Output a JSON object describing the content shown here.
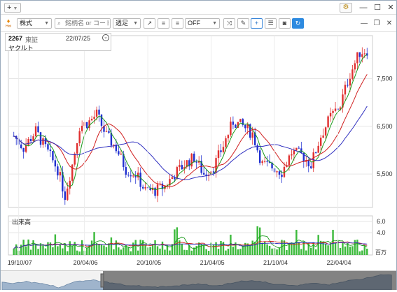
{
  "titlebar": {
    "add_label": "+",
    "window_controls": [
      "minimize",
      "maximize",
      "close"
    ]
  },
  "toolbar": {
    "brand_label": "Hot",
    "market_select": "株式",
    "search_placeholder": "銘柄名 or コード",
    "period_select": "週足",
    "indicator_select": "OFF",
    "tools": [
      "arrow-diagonal-icon",
      "align-lines-icon",
      "align-lines-2-icon",
      "swap-icon",
      "pen-icon",
      "crosshair-icon",
      "list-icon",
      "camera-icon",
      "refresh-icon"
    ]
  },
  "stock_info": {
    "code": "2267",
    "market": "東証",
    "date": "22/07/25",
    "name": "ヤクルト"
  },
  "price_axis": {
    "ticks": [
      "7,500",
      "6,500",
      "5,500"
    ],
    "tick_values": [
      7500,
      6500,
      5500
    ]
  },
  "volume": {
    "label": "出来高",
    "ticks": [
      "6.0",
      "4.0"
    ],
    "tick_values": [
      6.0,
      4.0
    ],
    "unit": "百万"
  },
  "date_axis": {
    "labels": [
      "19/10/07",
      "20/04/06",
      "20/10/05",
      "21/04/05",
      "21/10/04",
      "22/04/04"
    ]
  },
  "chart_data": {
    "type": "candlestick",
    "ylim": [
      4800,
      8400
    ],
    "bullish_color": "#e03030",
    "bearish_color": "#2030d0",
    "ma_colors": [
      "#1a9a1a",
      "#d02020",
      "#3030c0"
    ],
    "volume_color": "#3cba3c"
  }
}
